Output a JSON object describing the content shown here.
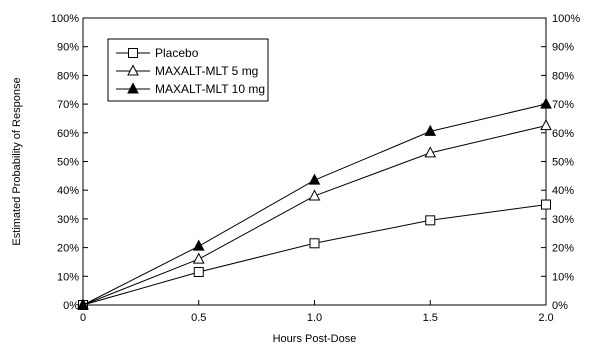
{
  "chart_data": {
    "type": "line",
    "xlabel": "Hours Post-Dose",
    "ylabel": "Estimated Probability of Response",
    "xlim": [
      0,
      2.0
    ],
    "ylim": [
      0,
      100
    ],
    "x_ticks": [
      "0",
      "0.5",
      "1.0",
      "1.5",
      "2.0"
    ],
    "y_ticks": [
      "0%",
      "10%",
      "20%",
      "30%",
      "40%",
      "50%",
      "60%",
      "70%",
      "80%",
      "90%",
      "100%"
    ],
    "grid": false,
    "legend_position": "top-left",
    "x": [
      0,
      0.5,
      1.0,
      1.5,
      2.0
    ],
    "series": [
      {
        "name": "Placebo",
        "marker": "open-square",
        "values": [
          0,
          11.5,
          21.5,
          29.5,
          35
        ]
      },
      {
        "name": "MAXALT-MLT 5 mg",
        "marker": "open-triangle",
        "values": [
          0,
          16,
          38,
          53,
          62.5
        ]
      },
      {
        "name": "MAXALT-MLT 10 mg",
        "marker": "filled-triangle",
        "values": [
          0,
          20.5,
          43.5,
          60.5,
          70
        ]
      }
    ]
  }
}
